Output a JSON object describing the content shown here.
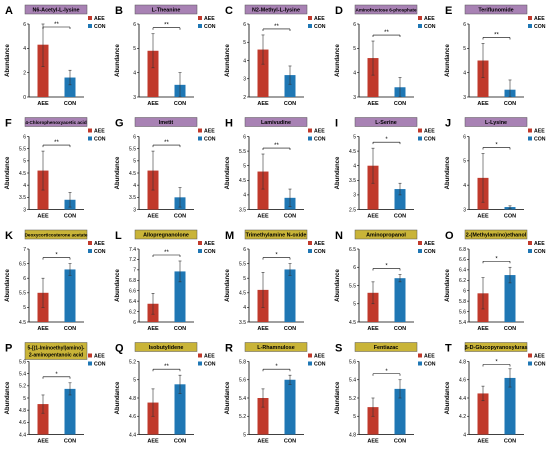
{
  "legend": {
    "aee": "AEE",
    "con": "CON"
  },
  "colors": {
    "aee": "#c0392b",
    "con": "#1f77b4",
    "title_purple": "#a882b4",
    "title_yellow": "#c9b438"
  },
  "chart_data": [
    {
      "type": "bar",
      "letter": "A",
      "title": "N6-Acetyl-L-lysine",
      "title_color": "purple",
      "ylabel": "Abundance",
      "categories": [
        "AEE",
        "CON"
      ],
      "series": [
        {
          "name": "AEE",
          "values": [
            4.3,
            null
          ]
        },
        {
          "name": "CON",
          "values": [
            null,
            1.6
          ]
        }
      ],
      "errors": [
        1.8,
        0.6
      ],
      "ylim": [
        0,
        6
      ],
      "yticks": [
        0,
        2,
        4,
        6
      ],
      "significance": "**",
      "legend_position": "top-right"
    },
    {
      "type": "bar",
      "letter": "B",
      "title": "L-Theanine",
      "title_color": "purple",
      "ylabel": "Abundance",
      "categories": [
        "AEE",
        "CON"
      ],
      "series": [
        {
          "name": "AEE",
          "values": [
            4.9,
            null
          ]
        },
        {
          "name": "CON",
          "values": [
            null,
            3.5
          ]
        }
      ],
      "errors": [
        0.7,
        0.5
      ],
      "ylim": [
        3,
        6
      ],
      "yticks": [
        3,
        4,
        5,
        6
      ],
      "significance": "**",
      "legend_position": "top-right"
    },
    {
      "type": "bar",
      "letter": "C",
      "title": "N2-Methyl-L-lysine",
      "title_color": "purple",
      "ylabel": "Abundance",
      "categories": [
        "AEE",
        "CON"
      ],
      "series": [
        {
          "name": "AEE",
          "values": [
            4.6,
            null
          ]
        },
        {
          "name": "CON",
          "values": [
            null,
            3.2
          ]
        }
      ],
      "errors": [
        0.8,
        0.5
      ],
      "ylim": [
        2,
        6
      ],
      "yticks": [
        2,
        3,
        4,
        5,
        6
      ],
      "significance": "**",
      "legend_position": "top-right"
    },
    {
      "type": "bar",
      "letter": "D",
      "title": "Aminofructose 6-phosphate",
      "title_color": "purple",
      "ylabel": "Abundance",
      "categories": [
        "AEE",
        "CON"
      ],
      "series": [
        {
          "name": "AEE",
          "values": [
            4.6,
            null
          ]
        },
        {
          "name": "CON",
          "values": [
            null,
            3.4
          ]
        }
      ],
      "errors": [
        0.7,
        0.4
      ],
      "ylim": [
        3,
        6
      ],
      "yticks": [
        3,
        4,
        5,
        6
      ],
      "significance": "**",
      "legend_position": "top-right"
    },
    {
      "type": "bar",
      "letter": "E",
      "title": "Teriflunomide",
      "title_color": "purple",
      "ylabel": "Abundance",
      "categories": [
        "AEE",
        "CON"
      ],
      "series": [
        {
          "name": "AEE",
          "values": [
            4.5,
            null
          ]
        },
        {
          "name": "CON",
          "values": [
            null,
            3.3
          ]
        }
      ],
      "errors": [
        0.7,
        0.4
      ],
      "ylim": [
        3,
        6
      ],
      "yticks": [
        3,
        4,
        5,
        6
      ],
      "significance": "**",
      "legend_position": "top-right"
    },
    {
      "type": "bar",
      "letter": "F",
      "title": "4-Chlorophenoxyacetic acid",
      "title_color": "purple",
      "ylabel": "Abundance",
      "categories": [
        "AEE",
        "CON"
      ],
      "series": [
        {
          "name": "AEE",
          "values": [
            4.6,
            null
          ]
        },
        {
          "name": "CON",
          "values": [
            null,
            3.4
          ]
        }
      ],
      "errors": [
        0.8,
        0.3
      ],
      "ylim": [
        3,
        6
      ],
      "yticks": [
        3,
        3.5,
        4,
        4.5,
        5,
        5.5,
        6
      ],
      "significance": "**",
      "legend_position": "top-right"
    },
    {
      "type": "bar",
      "letter": "G",
      "title": "Imetit",
      "title_color": "purple",
      "ylabel": "Abundance",
      "categories": [
        "AEE",
        "CON"
      ],
      "series": [
        {
          "name": "AEE",
          "values": [
            4.6,
            null
          ]
        },
        {
          "name": "CON",
          "values": [
            null,
            3.5
          ]
        }
      ],
      "errors": [
        0.8,
        0.4
      ],
      "ylim": [
        3,
        6
      ],
      "yticks": [
        3,
        3.5,
        4,
        4.5,
        5,
        5.5,
        6
      ],
      "significance": "**",
      "legend_position": "top-right"
    },
    {
      "type": "bar",
      "letter": "H",
      "title": "Lamivudine",
      "title_color": "purple",
      "ylabel": "Abundance",
      "categories": [
        "AEE",
        "CON"
      ],
      "series": [
        {
          "name": "AEE",
          "values": [
            4.8,
            null
          ]
        },
        {
          "name": "CON",
          "values": [
            null,
            3.9
          ]
        }
      ],
      "errors": [
        0.6,
        0.3
      ],
      "ylim": [
        3.5,
        6
      ],
      "yticks": [
        3.5,
        4,
        4.5,
        5,
        5.5,
        6
      ],
      "significance": "**",
      "legend_position": "top-right"
    },
    {
      "type": "bar",
      "letter": "I",
      "title": "L-Serine",
      "title_color": "purple",
      "ylabel": "Abundance",
      "categories": [
        "AEE",
        "CON"
      ],
      "series": [
        {
          "name": "AEE",
          "values": [
            4.0,
            null
          ]
        },
        {
          "name": "CON",
          "values": [
            null,
            3.2
          ]
        }
      ],
      "errors": [
        0.6,
        0.2
      ],
      "ylim": [
        2.5,
        5
      ],
      "yticks": [
        2.5,
        3,
        3.5,
        4,
        4.5,
        5
      ],
      "significance": "*",
      "legend_position": "top-right"
    },
    {
      "type": "bar",
      "letter": "J",
      "title": "L-Lysine",
      "title_color": "purple",
      "ylabel": "Abundance",
      "categories": [
        "AEE",
        "CON"
      ],
      "series": [
        {
          "name": "AEE",
          "values": [
            4.3,
            null
          ]
        },
        {
          "name": "CON",
          "values": [
            null,
            3.1
          ]
        }
      ],
      "errors": [
        1.0,
        0.05
      ],
      "ylim": [
        3,
        6
      ],
      "yticks": [
        3,
        4,
        5,
        6
      ],
      "significance": "*",
      "legend_position": "top-right"
    },
    {
      "type": "bar",
      "letter": "K",
      "title": "Deoxycorticosterone acetate",
      "title_color": "yellow",
      "ylabel": "Abundance",
      "categories": [
        "AEE",
        "CON"
      ],
      "series": [
        {
          "name": "AEE",
          "values": [
            5.5,
            null
          ]
        },
        {
          "name": "CON",
          "values": [
            null,
            6.3
          ]
        }
      ],
      "errors": [
        0.5,
        0.2
      ],
      "ylim": [
        4.5,
        7
      ],
      "yticks": [
        4.5,
        5,
        5.5,
        6,
        6.5,
        7
      ],
      "significance": "*",
      "legend_position": "top-right"
    },
    {
      "type": "bar",
      "letter": "L",
      "title": "Allopregnanolone",
      "title_color": "yellow",
      "ylabel": "Abundance",
      "categories": [
        "AEE",
        "CON"
      ],
      "series": [
        {
          "name": "AEE",
          "values": [
            6.35,
            null
          ]
        },
        {
          "name": "CON",
          "values": [
            null,
            6.97
          ]
        }
      ],
      "errors": [
        0.2,
        0.2
      ],
      "ylim": [
        6,
        7.4
      ],
      "yticks": [
        6,
        6.2,
        6.4,
        6.6,
        6.8,
        7,
        7.2,
        7.4
      ],
      "significance": "**",
      "legend_position": "top-right"
    },
    {
      "type": "bar",
      "letter": "M",
      "title": "Trimethylamine N-oxide",
      "title_color": "yellow",
      "ylabel": "Abundance",
      "categories": [
        "AEE",
        "CON"
      ],
      "series": [
        {
          "name": "AEE",
          "values": [
            4.6,
            null
          ]
        },
        {
          "name": "CON",
          "values": [
            null,
            5.3
          ]
        }
      ],
      "errors": [
        0.6,
        0.2
      ],
      "ylim": [
        3.5,
        6
      ],
      "yticks": [
        3.5,
        4,
        4.5,
        5,
        5.5,
        6
      ],
      "significance": "*",
      "legend_position": "top-right"
    },
    {
      "type": "bar",
      "letter": "N",
      "title": "Aminopropanol",
      "title_color": "yellow",
      "ylabel": "Abundance",
      "categories": [
        "AEE",
        "CON"
      ],
      "series": [
        {
          "name": "AEE",
          "values": [
            5.3,
            null
          ]
        },
        {
          "name": "CON",
          "values": [
            null,
            5.7
          ]
        }
      ],
      "errors": [
        0.3,
        0.1
      ],
      "ylim": [
        4.5,
        6.5
      ],
      "yticks": [
        4.5,
        5,
        5.5,
        6,
        6.5
      ],
      "significance": "*",
      "legend_position": "top-right"
    },
    {
      "type": "bar",
      "letter": "O",
      "title": "2-(Methylamino)ethanol",
      "title_color": "yellow",
      "ylabel": "Abundance",
      "categories": [
        "AEE",
        "CON"
      ],
      "series": [
        {
          "name": "AEE",
          "values": [
            5.95,
            null
          ]
        },
        {
          "name": "CON",
          "values": [
            null,
            6.3
          ]
        }
      ],
      "errors": [
        0.3,
        0.15
      ],
      "ylim": [
        5.4,
        6.8
      ],
      "yticks": [
        5.4,
        5.6,
        5.8,
        6,
        6.2,
        6.4,
        6.6,
        6.8
      ],
      "significance": "*",
      "legend_position": "top-right"
    },
    {
      "type": "bar",
      "letter": "P",
      "title": "5-[(1-Iminoethyl)amino]-2-aminopentanoic acid",
      "title_color": "yellow",
      "ylabel": "Abundance",
      "categories": [
        "AEE",
        "CON"
      ],
      "series": [
        {
          "name": "AEE",
          "values": [
            4.9,
            null
          ]
        },
        {
          "name": "CON",
          "values": [
            null,
            5.15
          ]
        }
      ],
      "errors": [
        0.15,
        0.1
      ],
      "ylim": [
        4.4,
        5.6
      ],
      "yticks": [
        4.4,
        4.6,
        4.8,
        5,
        5.2,
        5.4,
        5.6
      ],
      "significance": "*",
      "legend_position": "top-right"
    },
    {
      "type": "bar",
      "letter": "Q",
      "title": "Isobutylidene",
      "title_color": "yellow",
      "ylabel": "Abundance",
      "categories": [
        "AEE",
        "CON"
      ],
      "series": [
        {
          "name": "AEE",
          "values": [
            4.75,
            null
          ]
        },
        {
          "name": "CON",
          "values": [
            null,
            4.95
          ]
        }
      ],
      "errors": [
        0.15,
        0.1
      ],
      "ylim": [
        4.4,
        5.2
      ],
      "yticks": [
        4.4,
        4.6,
        4.8,
        5,
        5.2
      ],
      "significance": "**",
      "legend_position": "top-right"
    },
    {
      "type": "bar",
      "letter": "R",
      "title": "L-Rhamnulose",
      "title_color": "yellow",
      "ylabel": "Abundance",
      "categories": [
        "AEE",
        "CON"
      ],
      "series": [
        {
          "name": "AEE",
          "values": [
            5.4,
            null
          ]
        },
        {
          "name": "CON",
          "values": [
            null,
            5.6
          ]
        }
      ],
      "errors": [
        0.1,
        0.05
      ],
      "ylim": [
        5,
        5.8
      ],
      "yticks": [
        5,
        5.2,
        5.4,
        5.6,
        5.8
      ],
      "significance": "*",
      "legend_position": "top-right"
    },
    {
      "type": "bar",
      "letter": "S",
      "title": "Fentiazac",
      "title_color": "yellow",
      "ylabel": "Abundance",
      "categories": [
        "AEE",
        "CON"
      ],
      "series": [
        {
          "name": "AEE",
          "values": [
            5.1,
            null
          ]
        },
        {
          "name": "CON",
          "values": [
            null,
            5.3
          ]
        }
      ],
      "errors": [
        0.1,
        0.1
      ],
      "ylim": [
        4.8,
        5.6
      ],
      "yticks": [
        4.8,
        5,
        5.2,
        5.4,
        5.6
      ],
      "significance": "*",
      "legend_position": "top-right"
    },
    {
      "type": "bar",
      "letter": "T",
      "title": "β-D-Glucopyranosyluras",
      "title_color": "yellow",
      "ylabel": "Abundance",
      "categories": [
        "AEE",
        "CON"
      ],
      "series": [
        {
          "name": "AEE",
          "values": [
            4.45,
            null
          ]
        },
        {
          "name": "CON",
          "values": [
            null,
            4.62
          ]
        }
      ],
      "errors": [
        0.08,
        0.1
      ],
      "ylim": [
        4,
        4.8
      ],
      "yticks": [
        4,
        4.2,
        4.4,
        4.6,
        4.8
      ],
      "significance": "*",
      "legend_position": "top-right"
    }
  ]
}
